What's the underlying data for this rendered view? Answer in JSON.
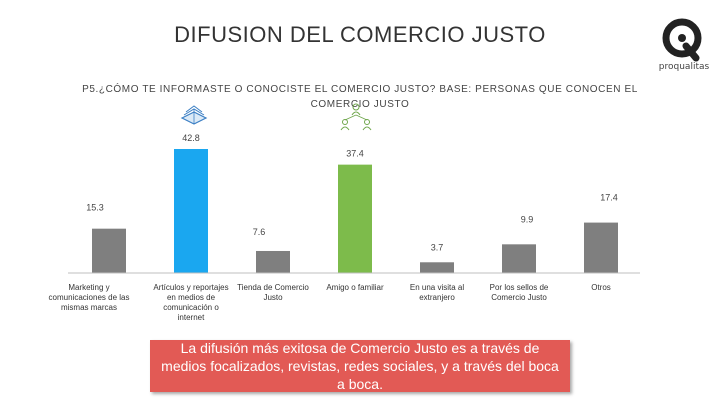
{
  "header": {
    "title": "DIFUSION DEL COMERCIO JUSTO",
    "logo_text": "proqualitas"
  },
  "question": "P5.¿CÓMO TE INFORMASTE O CONOCISTE EL COMERCIO JUSTO? BASE: PERSONAS QUE CONOCEN EL COMERCIO JUSTO",
  "callout": "La difusión más exitosa de Comercio Justo es a través de medios focalizados, revistas, redes sociales, y a través del boca a boca.",
  "colors": {
    "default_bar": "#7f7f7f",
    "highlight_blue": "#1aa7f0",
    "highlight_green": "#7dbb4b",
    "callout": "#e25a55",
    "icon_blue": "#3b7fc4",
    "icon_green": "#6ea64a"
  },
  "icons": [
    "book-icon",
    "people-network-icon"
  ],
  "chart_data": {
    "type": "bar",
    "categories": [
      "Marketing y comunicaciones de las mismas marcas",
      "Artículos y reportajes en medios de comunicación o internet",
      "Tienda de Comercio Justo",
      "Amigo o familiar",
      "En una visita al extranjero",
      "Por los sellos de Comercio Justo",
      "Otros"
    ],
    "values": [
      15.3,
      42.8,
      7.6,
      37.4,
      3.7,
      9.9,
      17.4
    ],
    "value_labels": [
      "15.3",
      "42.8",
      "7.6",
      "37.4",
      "3.7",
      "9.9",
      "17.4"
    ],
    "bar_colors": [
      "#7f7f7f",
      "#1aa7f0",
      "#7f7f7f",
      "#7dbb4b",
      "#7f7f7f",
      "#7f7f7f",
      "#7f7f7f"
    ],
    "ylim": [
      0,
      42.8
    ],
    "title": "",
    "xlabel": "",
    "ylabel": "",
    "grid": false,
    "legend": "none"
  }
}
